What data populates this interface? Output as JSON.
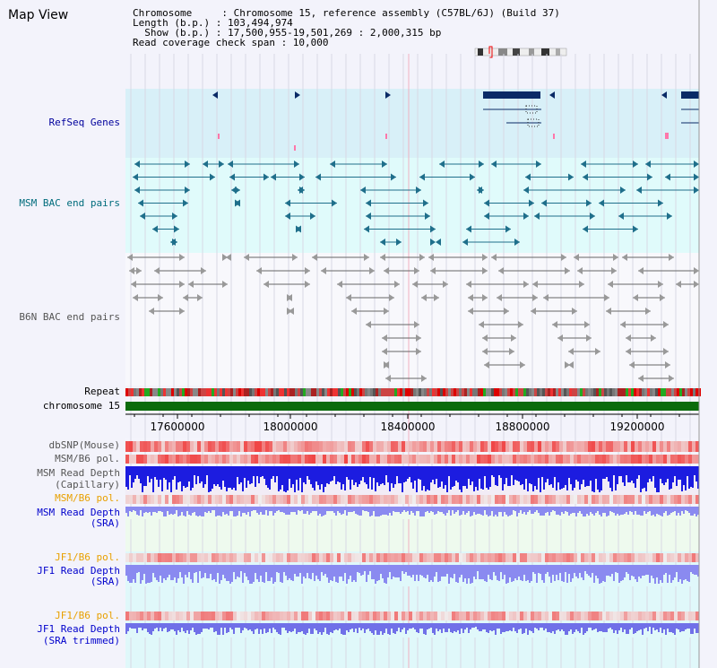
{
  "window": {
    "title": "Map View"
  },
  "header": {
    "line1": "Chromosome     : Chromosome 15, reference assembly (C57BL/6J) (Build 37)",
    "line2": "Length (b.p.) : 103,494,974",
    "line3": "  Show (b.p.) : 17,500,955-19,501,269 : 2,000,315 bp",
    "line4": "Read coverage check span : 10,000"
  },
  "tracks": {
    "refseq": "RefSeq Genes",
    "msm_bac": "MSM BAC end pairs",
    "b6n_bac": "B6N BAC end pairs",
    "repeat": "Repeat",
    "chromosome": "chromosome 15",
    "dbsnp": "dbSNP(Mouse)",
    "msm_b6_pol_1": "MSM/B6 pol.",
    "msm_depth_cap_1": "MSM Read Depth",
    "msm_depth_cap_2": "(Capillary)",
    "msm_b6_pol_2": "MSM/B6 pol.",
    "msm_depth_sra_1": "MSM Read Depth",
    "msm_depth_sra_2": "(SRA)",
    "jf1_b6_pol_1": "JF1/B6 pol.",
    "jf1_depth_sra_1": "JF1 Read Depth",
    "jf1_depth_sra_2": "(SRA)",
    "jf1_b6_pol_2": "JF1/B6 pol.",
    "jf1_depth_trim_1": "JF1 Read Depth",
    "jf1_depth_trim_2": "(SRA trimmed)"
  },
  "axis": {
    "ticks": [
      "17600000",
      "18000000",
      "18400000",
      "18800000",
      "19200000"
    ]
  },
  "colors": {
    "refseq_bg": "#d8f0f8",
    "bac_bg": "#e0fbfb",
    "gene": "#0a2a66",
    "msm_feature": "#1f6f8b",
    "b6n_feature": "#666666",
    "chromosome_bar": "#0b6b0b",
    "depth_capillary": "#1c1ce0",
    "depth_sra": "#8a8af0"
  }
}
